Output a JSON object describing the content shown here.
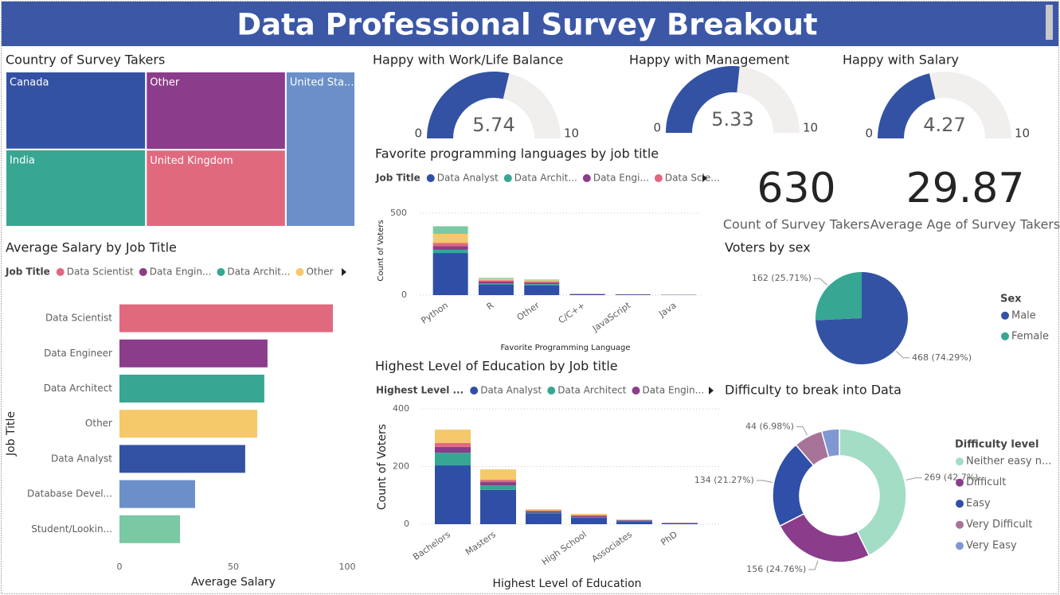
{
  "title": "Data Professional Survey Breakout",
  "cards": [
    {
      "value": 630,
      "label": "Count of Survey Takers"
    },
    {
      "value": 29.87,
      "label": "Average Age of Survey Takers"
    }
  ],
  "chart_data": [
    {
      "type": "treemap",
      "title": "Country of Survey Takers",
      "categories": [
        "Canada",
        "Other",
        "India",
        "United Kingdom",
        "United Sta..."
      ],
      "values": [
        127,
        127,
        126,
        125,
        125
      ],
      "colors": [
        "#3352a3",
        "#8b3c8b",
        "#37a794",
        "#e0697e",
        "#6b8fc9"
      ]
    },
    {
      "type": "gauge",
      "title": "Happy with Work/Life Balance",
      "value": 5.74,
      "range": [
        0,
        10
      ],
      "color": "#3352a3"
    },
    {
      "type": "gauge",
      "title": "Happy with Management",
      "value": 5.33,
      "range": [
        0,
        10
      ],
      "color": "#3352a3"
    },
    {
      "type": "gauge",
      "title": "Happy with Salary",
      "value": 4.27,
      "range": [
        0,
        10
      ],
      "color": "#3352a3"
    },
    {
      "type": "stacked_bar",
      "title": "Favorite programming languages by job title",
      "legend_title": "Job Title",
      "xlabel": "Favorite Programming Language",
      "ylabel": "Count of Voters",
      "categories": [
        "Python",
        "R",
        "Other",
        "C/C++",
        "JavaScript",
        "Java"
      ],
      "series": [
        {
          "name": "Data Analyst",
          "color": "#2f4fa6",
          "values": [
            257,
            65,
            60,
            5,
            4,
            2
          ]
        },
        {
          "name": "Data Archit...",
          "color": "#37a794",
          "values": [
            20,
            8,
            7,
            1,
            0,
            0
          ]
        },
        {
          "name": "Data Engi...",
          "color": "#8b3c8b",
          "values": [
            22,
            10,
            8,
            1,
            1,
            0
          ]
        },
        {
          "name": "Data Scie...",
          "color": "#e0697e",
          "values": [
            20,
            8,
            8,
            1,
            0,
            0
          ]
        },
        {
          "color": "#f5c869",
          "values": [
            55,
            8,
            7,
            0,
            1,
            1
          ]
        },
        {
          "color": "#7ac8a4",
          "values": [
            46,
            6,
            5,
            0,
            0,
            0
          ]
        }
      ],
      "ylim": [
        0,
        500
      ],
      "yticks": [
        0,
        500
      ],
      "grid": true
    },
    {
      "type": "hbar",
      "title": "Average Salary by Job Title",
      "legend_title": "Job Title",
      "legend": [
        "Data Scientist",
        "Data Engin...",
        "Data Archit...",
        "Other"
      ],
      "xlabel": "Average Salary",
      "ylabel": "Job Title",
      "categories": [
        "Data Scientist",
        "Data Engineer",
        "Data Architect",
        "Other",
        "Data Analyst",
        "Database Devel...",
        "Student/Lookin..."
      ],
      "values": [
        93.7,
        65,
        63.6,
        60.5,
        55.2,
        33.2,
        26.6
      ],
      "colors": [
        "#e0697e",
        "#8b3c8b",
        "#37a794",
        "#f5c869",
        "#3352a3",
        "#6b8fc9",
        "#7ac8a4"
      ],
      "xlim": [
        0,
        100
      ],
      "xticks": [
        0,
        50,
        100
      ]
    },
    {
      "type": "stacked_bar",
      "title": "Highest Level of Education by Job title",
      "legend_title": "Highest Level ...",
      "xlabel": "Highest Level of Education",
      "ylabel": "Count of Voters",
      "categories": [
        "Bachelors",
        "Masters",
        null,
        "High School",
        "Associates",
        "PhD"
      ],
      "series": [
        {
          "name": "Data Analyst",
          "color": "#2f4fa6",
          "values": [
            204,
            119,
            38,
            22,
            10,
            3
          ]
        },
        {
          "name": "Data Architect",
          "color": "#37a794",
          "values": [
            44,
            16,
            2,
            3,
            2,
            0
          ]
        },
        {
          "name": "Data Engin...",
          "color": "#8b3c8b",
          "values": [
            20,
            11,
            5,
            4,
            2,
            1
          ]
        },
        {
          "color": "#e0697e",
          "values": [
            14,
            8,
            3,
            2,
            1,
            1
          ]
        },
        {
          "color": "#f5c869",
          "values": [
            46,
            36,
            4,
            5,
            1,
            0
          ]
        }
      ],
      "ylim": [
        0,
        400
      ],
      "yticks": [
        0,
        200,
        400
      ],
      "grid": true
    },
    {
      "type": "pie",
      "title": "Voters by sex",
      "legend_title": "Sex",
      "categories": [
        "Male",
        "Female"
      ],
      "values": [
        468,
        162
      ],
      "value_labels": [
        "468 (74.29%)",
        "162 (25.71%)"
      ],
      "colors": [
        "#3352a3",
        "#37a794"
      ]
    },
    {
      "type": "donut",
      "title": "Difficulty to break into Data",
      "legend_title": "Difficulty level",
      "categories": [
        "Neither easy n...",
        "Difficult",
        "Easy",
        "Very Difficult",
        "Very Easy"
      ],
      "values": [
        269,
        156,
        134,
        44,
        27
      ],
      "value_labels": [
        "269 (42.7%)",
        "156 (24.76%)",
        "134 (21.27%)",
        "44 (6.98%)",
        null
      ],
      "colors": [
        "#a3ddc6",
        "#8b3c8b",
        "#2f4fa8",
        "#a77398",
        "#8098d2"
      ]
    }
  ]
}
